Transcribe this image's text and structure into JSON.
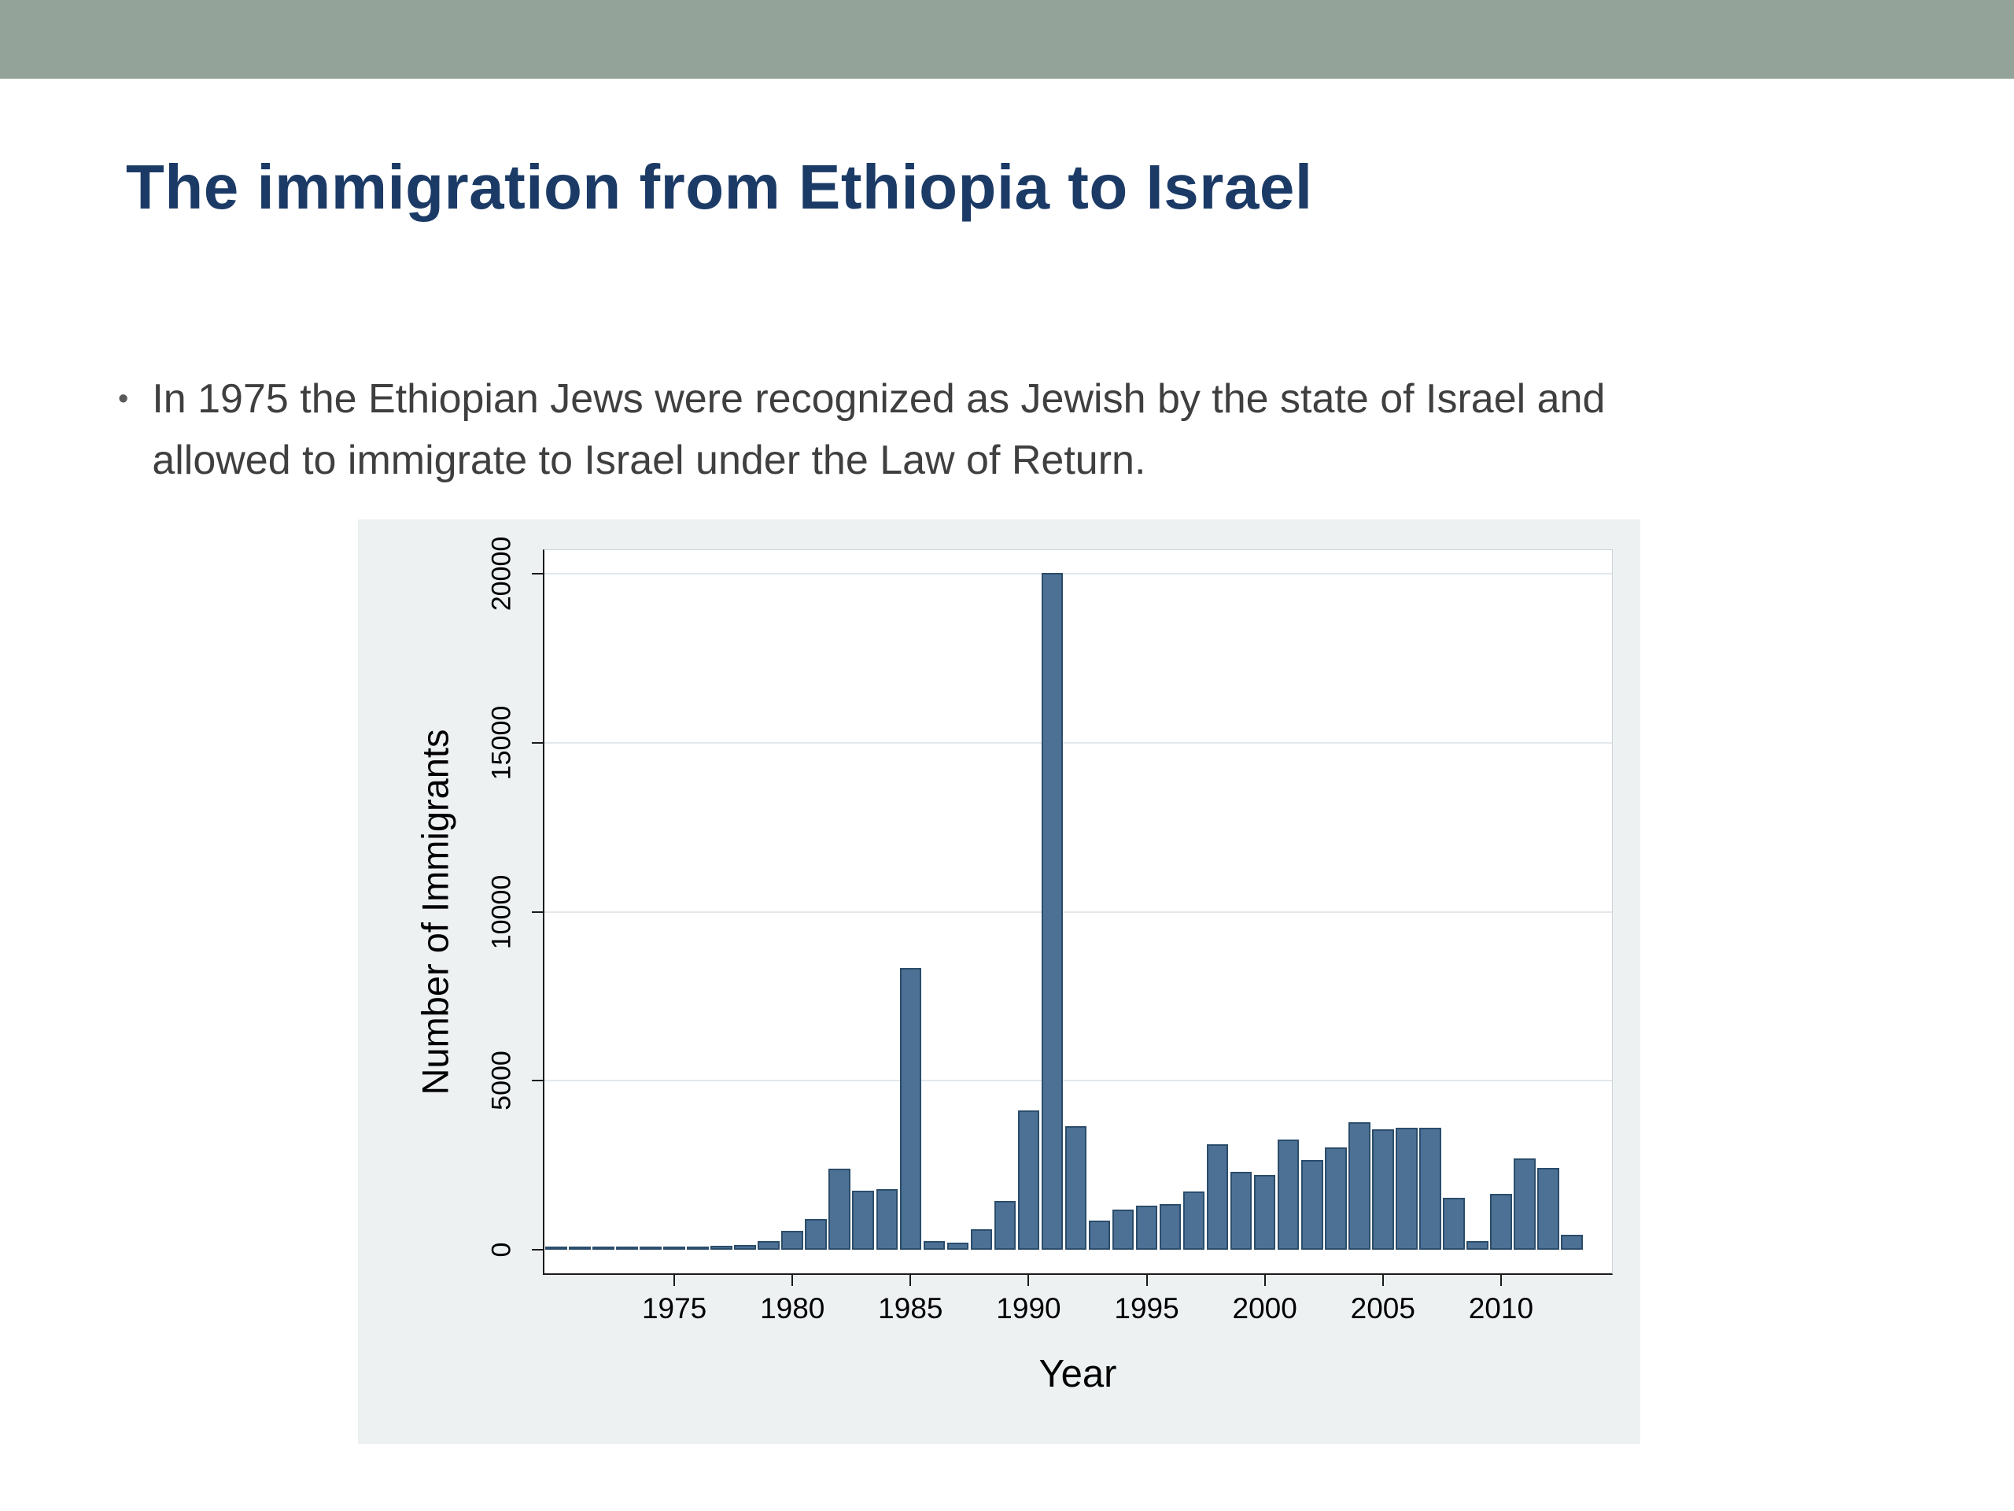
{
  "slide": {
    "title": "The immigration from Ethiopia to Israel",
    "bullet_marker": "•",
    "bullet_text": "In 1975 the Ethiopian Jews were recognized as Jewish by the state of Israel and allowed to immigrate to Israel under the Law of Return."
  },
  "theme": {
    "band_color": "#93a39a",
    "title_color": "#1b3a66",
    "body_text_color": "#3f3f3f",
    "chart_panel_bg": "#edf1f2",
    "bar_color": "#4d7095",
    "bar_border_color": "#2b4d6b",
    "gridline_color": "#e2e8ec"
  },
  "chart_data": {
    "type": "bar",
    "title": "",
    "xlabel": "Year",
    "ylabel": "Number of Immigrants",
    "xlim": [
      1969.5,
      2014.7
    ],
    "ylim": [
      0,
      20000
    ],
    "xticks": [
      1975,
      1980,
      1985,
      1990,
      1995,
      2000,
      2005,
      2010
    ],
    "yticks": [
      0,
      5000,
      10000,
      15000,
      20000
    ],
    "grid": "horizontal",
    "legend": "none",
    "years": [
      1970,
      1971,
      1972,
      1973,
      1974,
      1975,
      1976,
      1977,
      1978,
      1979,
      1980,
      1981,
      1982,
      1983,
      1984,
      1985,
      1986,
      1987,
      1988,
      1989,
      1990,
      1991,
      1992,
      1993,
      1994,
      1995,
      1996,
      1997,
      1998,
      1999,
      2000,
      2001,
      2002,
      2003,
      2004,
      2005,
      2006,
      2007,
      2008,
      2009,
      2010,
      2011,
      2012,
      2013
    ],
    "values": [
      20,
      25,
      30,
      50,
      40,
      60,
      70,
      120,
      150,
      250,
      550,
      900,
      2400,
      1750,
      1800,
      8330,
      250,
      200,
      600,
      1450,
      4120,
      20015,
      3650,
      860,
      1190,
      1310,
      1360,
      1720,
      3110,
      2300,
      2200,
      3270,
      2660,
      3030,
      3770,
      3570,
      3600,
      3610,
      1540,
      250,
      1650,
      2700,
      2430,
      450
    ]
  }
}
